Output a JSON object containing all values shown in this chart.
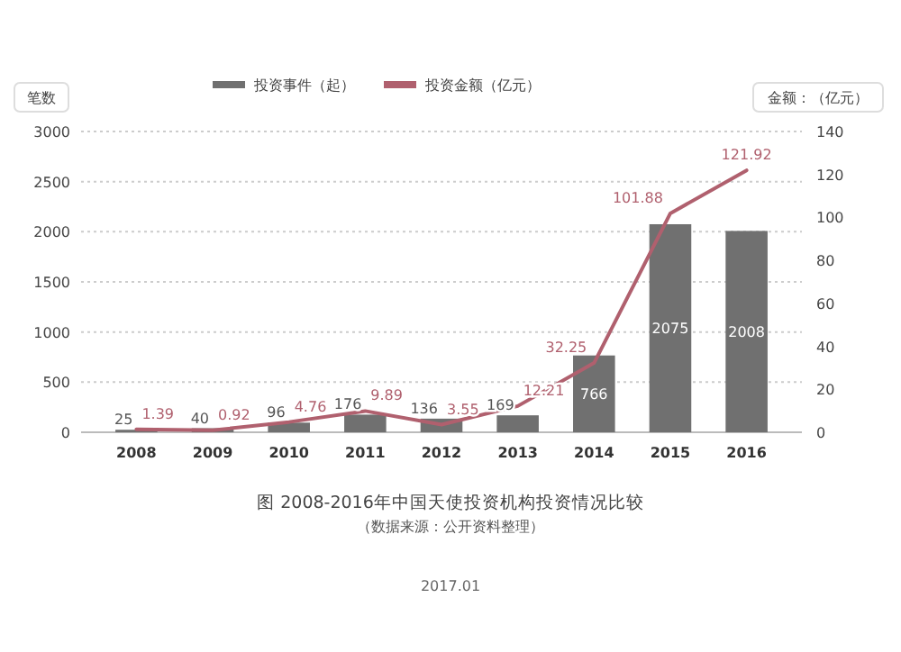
{
  "chart_data": {
    "type": "bar",
    "title": "图 2008-2016年中国天使投资机构投资情况比较",
    "subtitle": "（数据来源：公开资料整理）",
    "ylabel": "笔数",
    "y2label": "金额：（亿元）",
    "categories": [
      "2008",
      "2009",
      "2010",
      "2011",
      "2012",
      "2013",
      "2014",
      "2015",
      "2016"
    ],
    "series": [
      {
        "name": "投资事件（起）",
        "color": "#707070",
        "values": [
          25,
          40,
          96,
          176,
          136,
          169,
          766,
          2075,
          2008
        ]
      },
      {
        "name": "投资金额（亿元）",
        "type": "line",
        "axis": "y2",
        "color": "#b0606e",
        "values": [
          1.39,
          0.92,
          4.76,
          9.89,
          3.55,
          12.21,
          32.25,
          101.88,
          121.92
        ]
      }
    ],
    "ylim": [
      0,
      3000
    ],
    "yticks": [
      0,
      500,
      1000,
      1500,
      2000,
      2500,
      3000
    ],
    "y2lim": [
      0,
      140
    ],
    "y2ticks": [
      0,
      20,
      40,
      60,
      80,
      100,
      120,
      140
    ],
    "grid": "y",
    "legend": "top",
    "data_labels": true,
    "annotations": [
      "2017.01"
    ]
  }
}
